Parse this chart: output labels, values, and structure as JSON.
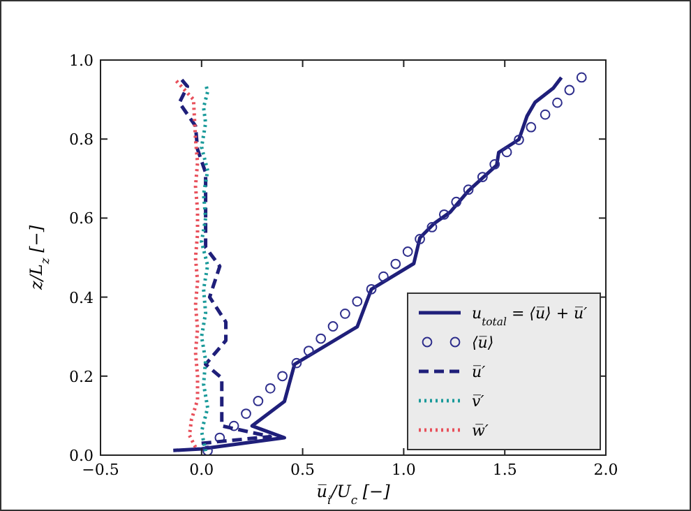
{
  "chart_data": {
    "type": "line",
    "xlabel": "u̅$_{i}$/U$_{c}$ [−]",
    "ylabel": "z/L$_{z}$ [−]",
    "xlim": [
      -0.5,
      2.0
    ],
    "xticks": [
      {
        "value": -0.5,
        "label": "−0.5"
      },
      {
        "value": 0,
        "label": "0.0"
      },
      0.5,
      {
        "value": 1,
        "label": "1.0"
      },
      1.5,
      {
        "value": 2,
        "label": "2.0"
      }
    ],
    "ylim": [
      0.0,
      1.0
    ],
    "yticks": [
      {
        "value": 0,
        "label": "0.0"
      },
      0.2,
      0.4,
      0.6,
      0.8,
      {
        "value": 1,
        "label": "1.0"
      }
    ],
    "grid": false,
    "legend": "bottom right",
    "series": [
      {
        "name": "u$_{total}$ = ⟨u̅⟩ + u̅′",
        "color": "#1f1f7a",
        "line_style": "solid",
        "x": [
          -0.14,
          0.0,
          0.41,
          0.25,
          0.41,
          0.46,
          0.47,
          0.77,
          0.84,
          1.05,
          1.08,
          1.15,
          1.23,
          1.32,
          1.46,
          1.47,
          1.57,
          1.61,
          1.65,
          1.74,
          1.78
        ],
        "values": [
          0.012,
          0.016,
          0.044,
          0.074,
          0.136,
          0.23,
          0.233,
          0.325,
          0.42,
          0.485,
          0.55,
          0.586,
          0.615,
          0.669,
          0.734,
          0.766,
          0.799,
          0.858,
          0.893,
          0.929,
          0.956
        ]
      },
      {
        "name": "⟨u̅⟩",
        "color": "#2e2e8c",
        "type": "scatter",
        "marker": "circle",
        "x": [
          0.03,
          0.09,
          0.16,
          0.22,
          0.28,
          0.34,
          0.4,
          0.47,
          0.53,
          0.59,
          0.65,
          0.71,
          0.77,
          0.84,
          0.9,
          0.96,
          1.02,
          1.08,
          1.14,
          1.2,
          1.26,
          1.32,
          1.39,
          1.45,
          1.51,
          1.57,
          1.63,
          1.7,
          1.76,
          1.82,
          1.88
        ],
        "values": [
          0.011,
          0.044,
          0.074,
          0.105,
          0.137,
          0.169,
          0.2,
          0.233,
          0.264,
          0.295,
          0.326,
          0.358,
          0.389,
          0.42,
          0.452,
          0.484,
          0.515,
          0.547,
          0.577,
          0.609,
          0.641,
          0.672,
          0.704,
          0.736,
          0.767,
          0.798,
          0.83,
          0.862,
          0.892,
          0.924,
          0.956
        ]
      },
      {
        "name": "u̅′",
        "color": "#1f1f7a",
        "line_style": "dashed",
        "x": [
          0.0,
          0.34,
          0.18,
          0.1,
          0.1,
          0.02,
          0.12,
          0.12,
          0.04,
          0.09,
          0.02,
          0.02,
          0.02,
          0.02,
          -0.02,
          -0.03,
          -0.11,
          -0.07,
          -0.1
        ],
        "values": [
          0.03,
          0.047,
          0.065,
          0.074,
          0.195,
          0.23,
          0.29,
          0.337,
          0.4,
          0.478,
          0.526,
          0.585,
          0.656,
          0.715,
          0.774,
          0.833,
          0.892,
          0.933,
          0.951
        ]
      },
      {
        "name": "v̅′",
        "color": "#1a9a9a",
        "line_style": "dotted",
        "x": [
          0.02,
          0.0,
          0.03,
          0.01,
          0.02,
          0.0,
          0.02,
          0.01,
          0.03,
          0.0,
          0.02,
          0.01,
          0.03,
          0.0,
          0.02,
          0.01,
          0.03,
          0.02
        ],
        "values": [
          0.01,
          0.06,
          0.12,
          0.18,
          0.24,
          0.3,
          0.36,
          0.42,
          0.48,
          0.54,
          0.6,
          0.66,
          0.72,
          0.78,
          0.84,
          0.88,
          0.92,
          0.94
        ]
      },
      {
        "name": "w̅′",
        "color": "#e8505b",
        "line_style": "dotted",
        "x": [
          -0.03,
          -0.06,
          -0.05,
          -0.02,
          -0.02,
          -0.03,
          -0.02,
          -0.03,
          -0.02,
          -0.03,
          -0.02,
          -0.02,
          -0.03,
          -0.02,
          -0.03,
          -0.04,
          -0.13
        ],
        "values": [
          0.02,
          0.05,
          0.09,
          0.14,
          0.2,
          0.26,
          0.32,
          0.38,
          0.44,
          0.5,
          0.56,
          0.62,
          0.68,
          0.74,
          0.8,
          0.9,
          0.95
        ]
      }
    ]
  }
}
